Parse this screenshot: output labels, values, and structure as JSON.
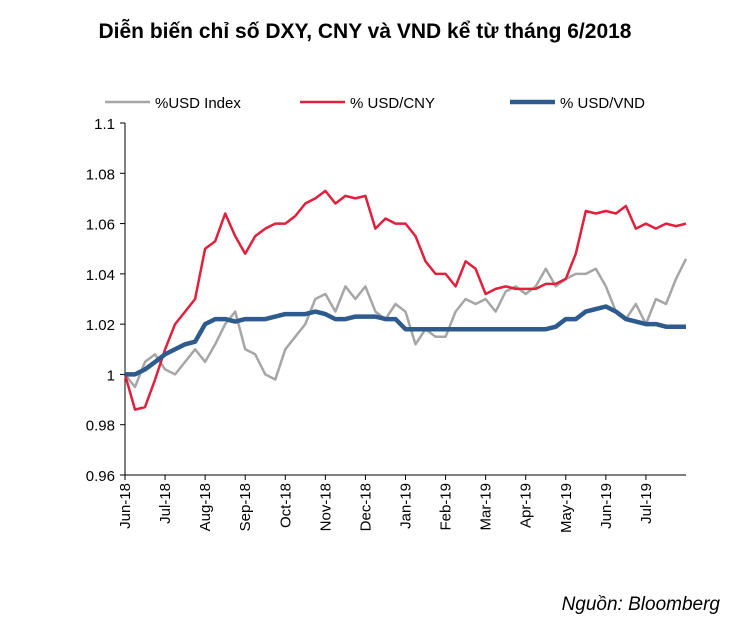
{
  "chart_data": {
    "type": "line",
    "title": "Diễn biến chỉ số DXY, CNY và VND kể từ tháng 6/2018",
    "source": "Nguồn: Bloomberg",
    "categories": [
      "Jun-18",
      null,
      null,
      null,
      "Jul-18",
      null,
      null,
      null,
      "Aug-18",
      null,
      null,
      null,
      "Sep-18",
      null,
      null,
      null,
      "Oct-18",
      null,
      null,
      null,
      "Nov-18",
      null,
      null,
      null,
      "Dec-18",
      null,
      null,
      null,
      "Jan-19",
      null,
      null,
      null,
      "Feb-19",
      null,
      null,
      null,
      "Mar-19",
      null,
      null,
      null,
      "Apr-19",
      null,
      null,
      null,
      "May-19",
      null,
      null,
      null,
      "Jun-19",
      null,
      null,
      null,
      "Jul-19",
      null,
      null,
      null,
      null
    ],
    "series": [
      {
        "name": "%USD Index",
        "color": "#a6a6a6",
        "width": 2.5,
        "values": [
          1.0,
          0.995,
          1.005,
          1.008,
          1.002,
          1.0,
          1.005,
          1.01,
          1.005,
          1.012,
          1.02,
          1.025,
          1.01,
          1.008,
          1.0,
          0.998,
          1.01,
          1.015,
          1.02,
          1.03,
          1.032,
          1.025,
          1.035,
          1.03,
          1.035,
          1.025,
          1.022,
          1.028,
          1.025,
          1.012,
          1.018,
          1.015,
          1.015,
          1.025,
          1.03,
          1.028,
          1.03,
          1.025,
          1.033,
          1.035,
          1.032,
          1.035,
          1.042,
          1.035,
          1.038,
          1.04,
          1.04,
          1.042,
          1.035,
          1.025,
          1.022,
          1.028,
          1.02,
          1.03,
          1.028,
          1.038,
          1.046
        ]
      },
      {
        "name": "% USD/CNY",
        "color": "#e0203c",
        "width": 2.5,
        "values": [
          1.0,
          0.986,
          0.987,
          0.998,
          1.01,
          1.02,
          1.025,
          1.03,
          1.05,
          1.053,
          1.064,
          1.055,
          1.048,
          1.055,
          1.058,
          1.06,
          1.06,
          1.063,
          1.068,
          1.07,
          1.073,
          1.068,
          1.071,
          1.07,
          1.071,
          1.058,
          1.062,
          1.06,
          1.06,
          1.055,
          1.045,
          1.04,
          1.04,
          1.035,
          1.045,
          1.042,
          1.032,
          1.034,
          1.035,
          1.034,
          1.034,
          1.034,
          1.036,
          1.036,
          1.038,
          1.048,
          1.065,
          1.064,
          1.065,
          1.064,
          1.067,
          1.058,
          1.06,
          1.058,
          1.06,
          1.059,
          1.06
        ]
      },
      {
        "name": "% USD/VND",
        "color": "#2e5b8e",
        "width": 4.5,
        "values": [
          1.0,
          1.0,
          1.002,
          1.005,
          1.008,
          1.01,
          1.012,
          1.013,
          1.02,
          1.022,
          1.022,
          1.021,
          1.022,
          1.022,
          1.022,
          1.023,
          1.024,
          1.024,
          1.024,
          1.025,
          1.024,
          1.022,
          1.022,
          1.023,
          1.023,
          1.023,
          1.022,
          1.022,
          1.018,
          1.018,
          1.018,
          1.018,
          1.018,
          1.018,
          1.018,
          1.018,
          1.018,
          1.018,
          1.018,
          1.018,
          1.018,
          1.018,
          1.018,
          1.019,
          1.022,
          1.022,
          1.025,
          1.026,
          1.027,
          1.025,
          1.022,
          1.021,
          1.02,
          1.02,
          1.019,
          1.019,
          1.019
        ]
      }
    ],
    "ylim": [
      0.96,
      1.1
    ],
    "yticks": [
      0.96,
      0.98,
      1,
      1.02,
      1.04,
      1.06,
      1.08,
      1.1
    ],
    "legend": "top",
    "grid": false
  }
}
